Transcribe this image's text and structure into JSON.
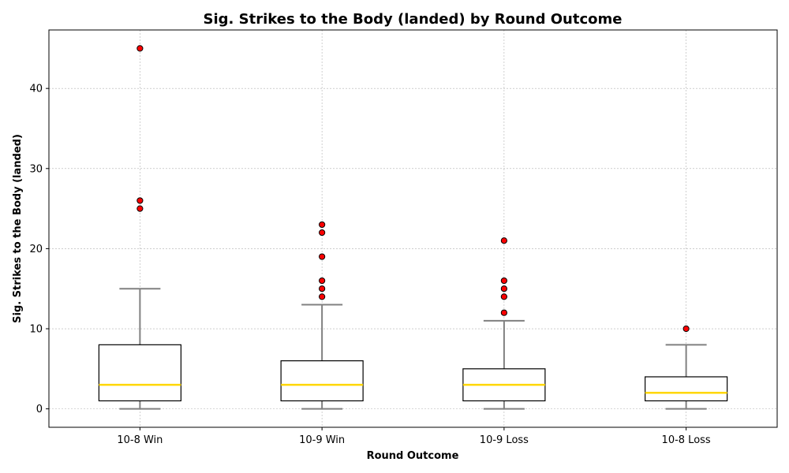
{
  "chart_data": {
    "type": "box",
    "title": "Sig. Strikes to the Body (landed) by Round Outcome",
    "xlabel": "Round Outcome",
    "ylabel": "Sig. Strikes to the Body (landed)",
    "ylim": [
      -2.3,
      47.3
    ],
    "yticks": [
      0,
      10,
      20,
      30,
      40
    ],
    "grid": true,
    "categories": [
      "10-8 Win",
      "10-9 Win",
      "10-9 Loss",
      "10-8 Loss"
    ],
    "boxes": [
      {
        "category": "10-8 Win",
        "whisker_low": 0,
        "q1": 1,
        "median": 3,
        "q3": 8,
        "whisker_high": 15,
        "outliers": [
          25,
          26,
          45
        ]
      },
      {
        "category": "10-9 Win",
        "whisker_low": 0,
        "q1": 1,
        "median": 3,
        "q3": 6,
        "whisker_high": 13,
        "outliers": [
          14,
          15,
          16,
          19,
          22,
          23
        ]
      },
      {
        "category": "10-9 Loss",
        "whisker_low": 0,
        "q1": 1,
        "median": 3,
        "q3": 5,
        "whisker_high": 11,
        "outliers": [
          12,
          14,
          15,
          16,
          21
        ]
      },
      {
        "category": "10-8 Loss",
        "whisker_low": 0,
        "q1": 1,
        "median": 2,
        "q3": 4,
        "whisker_high": 8,
        "outliers": [
          10
        ]
      }
    ],
    "colors": {
      "box_edge": "#000000",
      "box_fill": "#ffffff",
      "median": "#FFD700",
      "whisker": "#808080",
      "outlier_fill": "#ff0000",
      "outlier_edge": "#000000",
      "grid": "#b0b0b0"
    }
  }
}
